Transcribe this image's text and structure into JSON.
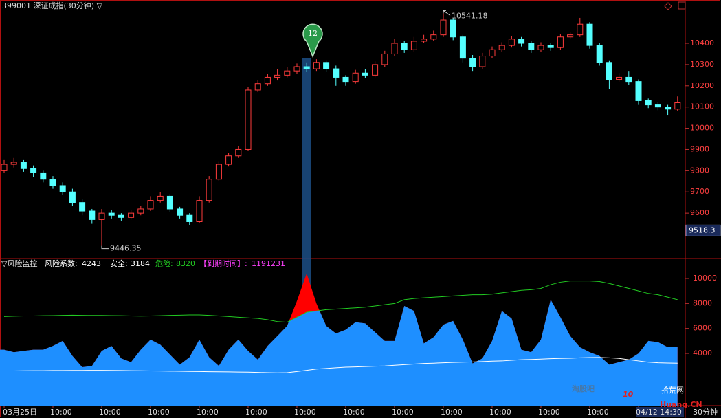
{
  "chart_data": [
    {
      "type": "candlestick",
      "title": "399001 深证成指(30分钟) ▽",
      "ylim": [
        9390,
        10604
      ],
      "yticks": [
        9600,
        9700,
        9800,
        9900,
        10000,
        10100,
        10200,
        10300,
        10400
      ],
      "up_color": "#ff3c3c",
      "down_color": "#54ffff",
      "high_label": 10541.18,
      "low_label": 9446.35,
      "price_tag": 9518.3,
      "marker_label": "12",
      "candles": [
        [
          9800,
          9850,
          9790,
          9830
        ],
        [
          9830,
          9860,
          9815,
          9840
        ],
        [
          9840,
          9850,
          9795,
          9810
        ],
        [
          9810,
          9825,
          9770,
          9790
        ],
        [
          9790,
          9800,
          9745,
          9760
        ],
        [
          9760,
          9775,
          9715,
          9730
        ],
        [
          9730,
          9745,
          9685,
          9700
        ],
        [
          9700,
          9715,
          9635,
          9650
        ],
        [
          9650,
          9665,
          9590,
          9610
        ],
        [
          9610,
          9620,
          9550,
          9570
        ],
        [
          9570,
          9620,
          9446.35,
          9600
        ],
        [
          9600,
          9615,
          9575,
          9590
        ],
        [
          9590,
          9600,
          9565,
          9580
        ],
        [
          9580,
          9615,
          9570,
          9600
        ],
        [
          9600,
          9635,
          9590,
          9620
        ],
        [
          9620,
          9680,
          9610,
          9660
        ],
        [
          9660,
          9700,
          9650,
          9680
        ],
        [
          9680,
          9690,
          9605,
          9620
        ],
        [
          9620,
          9630,
          9575,
          9590
        ],
        [
          9590,
          9600,
          9545,
          9560
        ],
        [
          9560,
          9680,
          9555,
          9660
        ],
        [
          9660,
          9775,
          9650,
          9760
        ],
        [
          9760,
          9845,
          9750,
          9830
        ],
        [
          9830,
          9885,
          9820,
          9870
        ],
        [
          9870,
          9915,
          9860,
          9900
        ],
        [
          9900,
          10195,
          9895,
          10180
        ],
        [
          10180,
          10225,
          10170,
          10210
        ],
        [
          10210,
          10255,
          10200,
          10240
        ],
        [
          10240,
          10280,
          10225,
          10250
        ],
        [
          10250,
          10290,
          10240,
          10270
        ],
        [
          10270,
          10305,
          10255,
          10290
        ],
        [
          10290,
          10310,
          10265,
          10280
        ],
        [
          10280,
          10325,
          10270,
          10310
        ],
        [
          10310,
          10320,
          10265,
          10280
        ],
        [
          10280,
          10295,
          10200,
          10240
        ],
        [
          10240,
          10250,
          10200,
          10220
        ],
        [
          10220,
          10275,
          10210,
          10260
        ],
        [
          10260,
          10280,
          10235,
          10250
        ],
        [
          10250,
          10315,
          10240,
          10300
        ],
        [
          10300,
          10365,
          10290,
          10350
        ],
        [
          10350,
          10420,
          10340,
          10400
        ],
        [
          10400,
          10410,
          10355,
          10370
        ],
        [
          10370,
          10430,
          10360,
          10410
        ],
        [
          10410,
          10440,
          10400,
          10420
        ],
        [
          10420,
          10460,
          10410,
          10440
        ],
        [
          10440,
          10541.18,
          10430,
          10510
        ],
        [
          10510,
          10520,
          10415,
          10430
        ],
        [
          10430,
          10440,
          10310,
          10330
        ],
        [
          10330,
          10345,
          10270,
          10290
        ],
        [
          10290,
          10355,
          10280,
          10340
        ],
        [
          10340,
          10385,
          10330,
          10370
        ],
        [
          10370,
          10405,
          10360,
          10390
        ],
        [
          10390,
          10435,
          10380,
          10420
        ],
        [
          10420,
          10430,
          10385,
          10400
        ],
        [
          10400,
          10410,
          10355,
          10370
        ],
        [
          10370,
          10405,
          10360,
          10390
        ],
        [
          10390,
          10400,
          10365,
          10380
        ],
        [
          10380,
          10445,
          10370,
          10430
        ],
        [
          10430,
          10455,
          10420,
          10440
        ],
        [
          10440,
          10520,
          10430,
          10490
        ],
        [
          10490,
          10500,
          10375,
          10390
        ],
        [
          10390,
          10400,
          10295,
          10310
        ],
        [
          10310,
          10320,
          10185,
          10230
        ],
        [
          10230,
          10260,
          10220,
          10240
        ],
        [
          10240,
          10270,
          10205,
          10220
        ],
        [
          10220,
          10230,
          10110,
          10130
        ],
        [
          10130,
          10140,
          10095,
          10110
        ],
        [
          10110,
          10125,
          10085,
          10100
        ],
        [
          10100,
          10110,
          10060,
          10090
        ],
        [
          10090,
          10150,
          10080,
          10120
        ]
      ],
      "xticks": [
        {
          "value": 0,
          "label": "03月25日"
        },
        {
          "value": 5,
          "label": "10:00"
        },
        {
          "value": 10,
          "label": "10:00"
        },
        {
          "value": 15,
          "label": "10:00"
        },
        {
          "value": 20,
          "label": "10:00"
        },
        {
          "value": 25,
          "label": "10:00"
        },
        {
          "value": 30,
          "label": "10:00"
        },
        {
          "value": 35,
          "label": "10:00"
        },
        {
          "value": 40,
          "label": "10:00"
        },
        {
          "value": 45,
          "label": "10:00"
        },
        {
          "value": 50,
          "label": "10:00"
        },
        {
          "value": 55,
          "label": "10:00"
        },
        {
          "value": 60,
          "label": "10:00"
        },
        {
          "value": 65,
          "label": "04/12 14:30"
        }
      ]
    },
    {
      "type": "area",
      "title": "▽风险监控",
      "period_label": "30分钟",
      "ylim": [
        -180,
        11540
      ],
      "yticks": [
        4000,
        6000,
        8000,
        10000
      ],
      "overshoot_color": "#ff0000",
      "expiry": {
        "name": "【到期时间】:",
        "value": 1191231,
        "color": "#ff40ff"
      },
      "series": [
        {
          "name": "风险系数:",
          "current": 4243,
          "color": "#1e8fff",
          "values": [
            4300,
            4100,
            4200,
            4300,
            4300,
            4600,
            5000,
            3800,
            2900,
            3000,
            4200,
            4600,
            3600,
            3300,
            4300,
            5100,
            4700,
            3900,
            3100,
            3700,
            5100,
            3700,
            3000,
            4300,
            5100,
            4200,
            3500,
            4600,
            5400,
            6200,
            8200,
            10400,
            8000,
            6200,
            5600,
            5900,
            6500,
            6400,
            5700,
            5000,
            5000,
            7800,
            7400,
            4800,
            5300,
            6300,
            6600,
            5100,
            3200,
            3600,
            5000,
            7400,
            6800,
            4300,
            4100,
            5100,
            8300,
            6900,
            5400,
            4500,
            4100,
            3800,
            3100,
            3300,
            3500,
            4000,
            5000,
            4900,
            4500,
            4500
          ]
        },
        {
          "name": "安全:",
          "current": 3184,
          "color": "#ffffff",
          "values": [
            2600,
            2600,
            2610,
            2620,
            2620,
            2630,
            2630,
            2640,
            2640,
            2650,
            2650,
            2640,
            2630,
            2620,
            2610,
            2600,
            2590,
            2580,
            2570,
            2560,
            2550,
            2540,
            2530,
            2520,
            2510,
            2500,
            2480,
            2460,
            2450,
            2460,
            2550,
            2650,
            2750,
            2800,
            2850,
            2900,
            2920,
            2950,
            2980,
            3000,
            3050,
            3100,
            3150,
            3200,
            3220,
            3250,
            3280,
            3300,
            3320,
            3350,
            3380,
            3400,
            3450,
            3500,
            3520,
            3550,
            3580,
            3600,
            3620,
            3650,
            3670,
            3680,
            3650,
            3600,
            3500,
            3400,
            3300,
            3250,
            3230,
            3220
          ]
        },
        {
          "name": "危险:",
          "current": 8320,
          "color": "#22cc22",
          "values": [
            6950,
            6980,
            7000,
            7000,
            7020,
            7030,
            7050,
            7060,
            7050,
            7040,
            7040,
            7030,
            7020,
            7000,
            6990,
            7000,
            7020,
            7050,
            7060,
            7080,
            7080,
            7050,
            7000,
            6950,
            6900,
            6850,
            6800,
            6700,
            6550,
            6500,
            6900,
            7300,
            7400,
            7500,
            7550,
            7600,
            7650,
            7700,
            7800,
            7900,
            8000,
            8300,
            8400,
            8450,
            8500,
            8550,
            8600,
            8650,
            8700,
            8700,
            8750,
            8850,
            8950,
            9050,
            9100,
            9200,
            9500,
            9700,
            9800,
            9800,
            9800,
            9750,
            9600,
            9400,
            9200,
            9000,
            8800,
            8700,
            8500,
            8300
          ]
        }
      ]
    }
  ],
  "watermark": {
    "text": "淘股吧",
    "logo_number": 10,
    "logo_site": "拾荒网",
    "logo_domain": "Huang.CN"
  }
}
